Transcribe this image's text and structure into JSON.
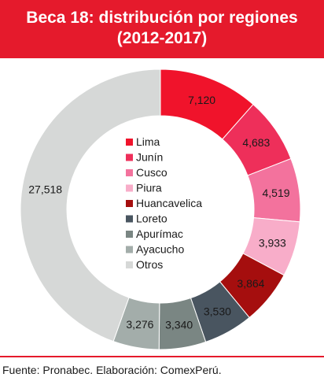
{
  "title_line1": "Beca 18: distribución por regiones",
  "title_line2": "(2012-2017)",
  "source": "Fuente: Pronabec. Elaboración: ComexPerú.",
  "chart_data": {
    "type": "pie",
    "donut": true,
    "legend_position": "center",
    "series": [
      {
        "name": "Lima",
        "value": 7120,
        "label": "7,120",
        "color": "#f0132b"
      },
      {
        "name": "Junín",
        "value": 4683,
        "label": "4,683",
        "color": "#ee2f5a"
      },
      {
        "name": "Cusco",
        "value": 4519,
        "label": "4,519",
        "color": "#f3729d"
      },
      {
        "name": "Piura",
        "value": 3933,
        "label": "3,933",
        "color": "#f8adc9"
      },
      {
        "name": "Huancavelica",
        "value": 3864,
        "label": "3,864",
        "color": "#a50e0e"
      },
      {
        "name": "Loreto",
        "value": 3530,
        "label": "3,530",
        "color": "#495560"
      },
      {
        "name": "Apurímac",
        "value": 3340,
        "label": "3,340",
        "color": "#7a8683"
      },
      {
        "name": "Ayacucho",
        "value": 3276,
        "label": "3,276",
        "color": "#a3adaa"
      },
      {
        "name": "Otros",
        "value": 27518,
        "label": "27,518",
        "color": "#d6d8d7"
      }
    ]
  }
}
